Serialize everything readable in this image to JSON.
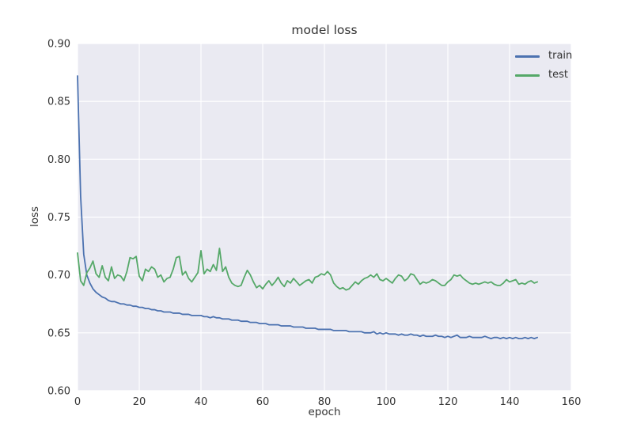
{
  "colors": {
    "figure_bg": "#ffffff",
    "axes_bg": "#eaeaf2",
    "grid": "#ffffff",
    "text": "#333333",
    "train_line": "#4c72b0",
    "test_line": "#55a868"
  },
  "chart_data": {
    "type": "line",
    "title": "model loss",
    "xlabel": "epoch",
    "ylabel": "loss",
    "xlim": [
      0,
      160
    ],
    "ylim": [
      0.6,
      0.9
    ],
    "grid": true,
    "legend_position": "upper right",
    "x_unit": "epoch index, 0 to 149",
    "xticks": {
      "values": [
        0,
        20,
        40,
        60,
        80,
        100,
        120,
        140,
        160
      ],
      "labels": [
        "0",
        "20",
        "40",
        "60",
        "80",
        "100",
        "120",
        "140",
        "160"
      ]
    },
    "yticks": {
      "values": [
        0.6,
        0.65,
        0.7,
        0.75,
        0.8,
        0.85,
        0.9
      ],
      "labels": [
        "0.60",
        "0.65",
        "0.70",
        "0.75",
        "0.80",
        "0.85",
        "0.90"
      ]
    },
    "series": [
      {
        "name": "train",
        "color": "#4c72b0",
        "values": [
          0.872,
          0.768,
          0.718,
          0.7,
          0.693,
          0.688,
          0.685,
          0.683,
          0.681,
          0.68,
          0.678,
          0.677,
          0.677,
          0.676,
          0.675,
          0.675,
          0.674,
          0.674,
          0.673,
          0.673,
          0.672,
          0.672,
          0.671,
          0.671,
          0.67,
          0.67,
          0.669,
          0.669,
          0.668,
          0.668,
          0.668,
          0.667,
          0.667,
          0.667,
          0.666,
          0.666,
          0.666,
          0.665,
          0.665,
          0.665,
          0.665,
          0.664,
          0.664,
          0.663,
          0.664,
          0.663,
          0.663,
          0.662,
          0.662,
          0.662,
          0.661,
          0.661,
          0.661,
          0.66,
          0.66,
          0.66,
          0.659,
          0.659,
          0.659,
          0.658,
          0.658,
          0.658,
          0.657,
          0.657,
          0.657,
          0.657,
          0.656,
          0.656,
          0.656,
          0.656,
          0.655,
          0.655,
          0.655,
          0.655,
          0.654,
          0.654,
          0.654,
          0.654,
          0.653,
          0.653,
          0.653,
          0.653,
          0.653,
          0.652,
          0.652,
          0.652,
          0.652,
          0.652,
          0.651,
          0.651,
          0.651,
          0.651,
          0.651,
          0.65,
          0.65,
          0.65,
          0.651,
          0.649,
          0.65,
          0.649,
          0.65,
          0.649,
          0.649,
          0.649,
          0.648,
          0.649,
          0.648,
          0.648,
          0.649,
          0.648,
          0.648,
          0.647,
          0.648,
          0.647,
          0.647,
          0.647,
          0.648,
          0.647,
          0.647,
          0.646,
          0.647,
          0.646,
          0.647,
          0.648,
          0.646,
          0.646,
          0.646,
          0.647,
          0.646,
          0.646,
          0.646,
          0.646,
          0.647,
          0.646,
          0.645,
          0.646,
          0.646,
          0.645,
          0.646,
          0.645,
          0.646,
          0.645,
          0.646,
          0.645,
          0.645,
          0.646,
          0.645,
          0.646,
          0.645,
          0.646
        ]
      },
      {
        "name": "test",
        "color": "#55a868",
        "values": [
          0.719,
          0.695,
          0.691,
          0.702,
          0.706,
          0.712,
          0.701,
          0.698,
          0.708,
          0.698,
          0.695,
          0.707,
          0.697,
          0.7,
          0.699,
          0.695,
          0.703,
          0.715,
          0.714,
          0.716,
          0.699,
          0.695,
          0.705,
          0.703,
          0.707,
          0.705,
          0.698,
          0.7,
          0.694,
          0.697,
          0.698,
          0.705,
          0.715,
          0.716,
          0.7,
          0.703,
          0.697,
          0.694,
          0.698,
          0.702,
          0.721,
          0.701,
          0.705,
          0.703,
          0.709,
          0.704,
          0.723,
          0.703,
          0.707,
          0.698,
          0.693,
          0.691,
          0.69,
          0.691,
          0.698,
          0.704,
          0.7,
          0.694,
          0.689,
          0.691,
          0.688,
          0.692,
          0.695,
          0.691,
          0.694,
          0.698,
          0.693,
          0.69,
          0.695,
          0.693,
          0.697,
          0.694,
          0.691,
          0.693,
          0.695,
          0.696,
          0.693,
          0.698,
          0.699,
          0.701,
          0.7,
          0.703,
          0.7,
          0.693,
          0.69,
          0.688,
          0.689,
          0.687,
          0.688,
          0.691,
          0.694,
          0.692,
          0.695,
          0.697,
          0.698,
          0.7,
          0.698,
          0.701,
          0.696,
          0.695,
          0.697,
          0.695,
          0.693,
          0.697,
          0.7,
          0.699,
          0.695,
          0.697,
          0.701,
          0.7,
          0.696,
          0.692,
          0.694,
          0.693,
          0.694,
          0.696,
          0.695,
          0.693,
          0.691,
          0.691,
          0.694,
          0.696,
          0.7,
          0.699,
          0.7,
          0.697,
          0.695,
          0.693,
          0.692,
          0.693,
          0.692,
          0.693,
          0.694,
          0.693,
          0.694,
          0.692,
          0.691,
          0.691,
          0.693,
          0.696,
          0.694,
          0.695,
          0.696,
          0.692,
          0.693,
          0.692,
          0.694,
          0.695,
          0.693,
          0.694
        ]
      }
    ]
  }
}
